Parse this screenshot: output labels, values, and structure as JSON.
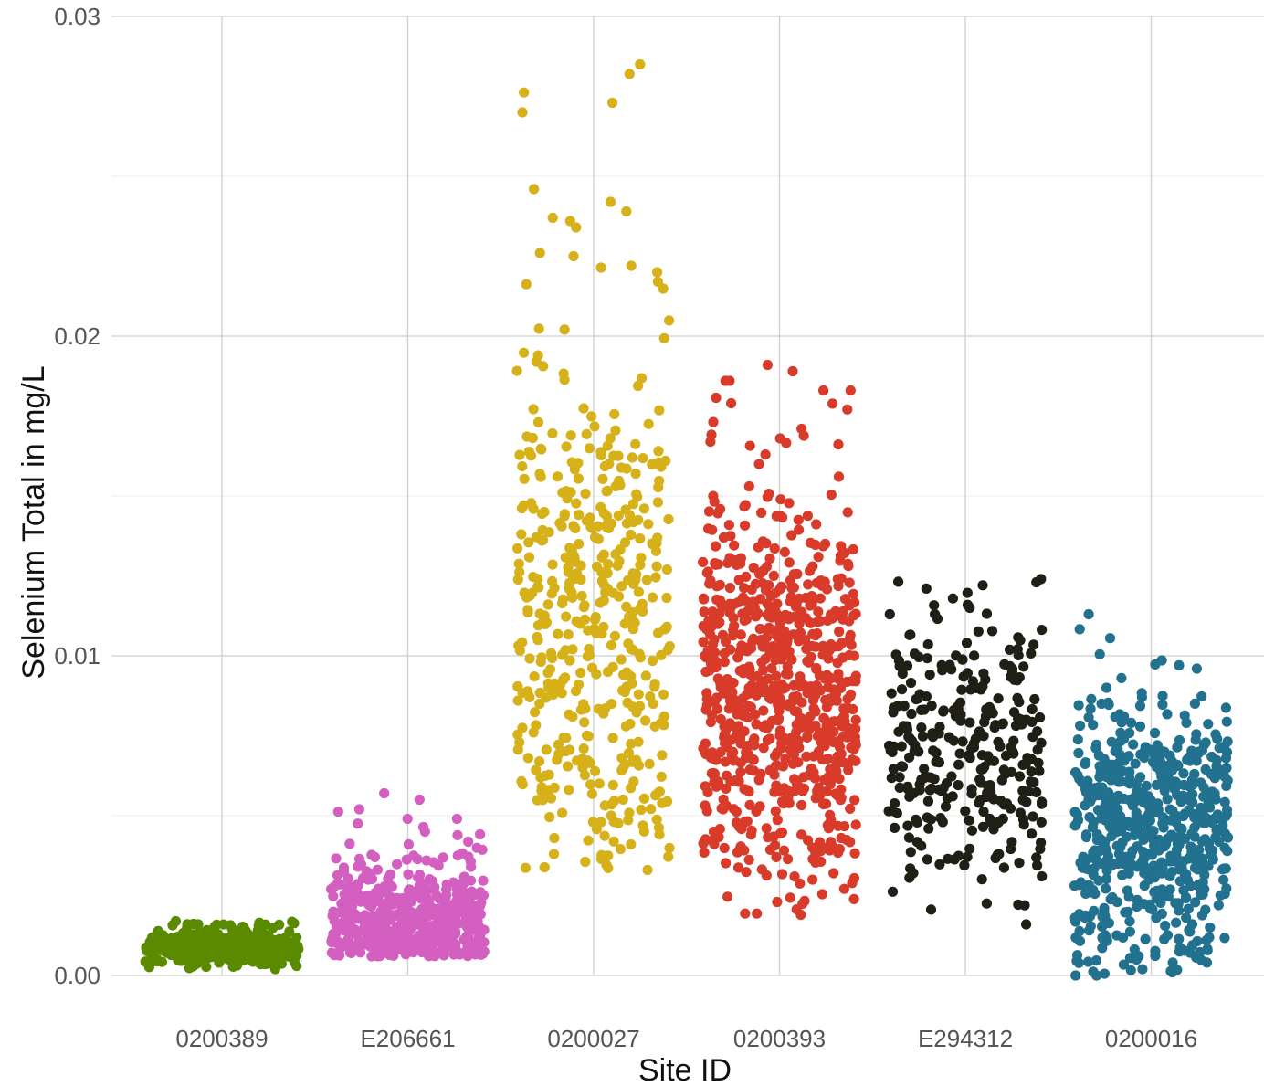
{
  "chart_data": {
    "type": "scatter",
    "title": "",
    "xlabel": "Site ID",
    "ylabel": "Selenium Total  in  mg/L",
    "ylim": [
      0,
      0.03
    ],
    "yticks": [
      {
        "value": 0,
        "label": "0.00"
      },
      {
        "value": 0.01,
        "label": "0.01"
      },
      {
        "value": 0.02,
        "label": "0.02"
      },
      {
        "value": 0.03,
        "label": "0.03"
      }
    ],
    "grid": true,
    "legend": "none",
    "categories": [
      "0200389",
      "E206661",
      "0200027",
      "0200393",
      "E294312",
      "0200016"
    ],
    "series": [
      {
        "category": "0200389",
        "color": "#5a8a00",
        "count": 400,
        "typical": 0.0009,
        "range": [
          0.0002,
          0.0017
        ],
        "extremes": [
          0.0002,
          0.0015,
          0.0016,
          0.0017,
          0.0016
        ]
      },
      {
        "category": "E206661",
        "color": "#d35fc0",
        "count": 500,
        "typical": 0.0017,
        "range": [
          0.0006,
          0.0057
        ],
        "extremes": [
          0.0052,
          0.0049,
          0.0055,
          0.0049,
          0.0057,
          0.0045,
          0.0041
        ]
      },
      {
        "category": "0200027",
        "color": "#d6b11a",
        "count": 450,
        "typical": 0.011,
        "range": [
          0.0033,
          0.0285
        ],
        "extremes": [
          0.0282,
          0.0285,
          0.0273,
          0.027,
          0.0246,
          0.0242,
          0.0239,
          0.0237,
          0.0236,
          0.0234,
          0.0226,
          0.0225,
          0.0222,
          0.022,
          0.0217,
          0.0033,
          0.0038,
          0.0043
        ]
      },
      {
        "category": "0200393",
        "color": "#d93b2b",
        "count": 750,
        "typical": 0.009,
        "range": [
          0.0019,
          0.0191
        ],
        "extremes": [
          0.0191,
          0.0189,
          0.0186,
          0.0186,
          0.0183,
          0.0183,
          0.0179,
          0.0171,
          0.0168,
          0.0019,
          0.0023
        ]
      },
      {
        "category": "E294312",
        "color": "#1f1f16",
        "count": 300,
        "typical": 0.007,
        "range": [
          0.0016,
          0.0124
        ],
        "extremes": [
          0.0124,
          0.0123,
          0.0115,
          0.0113,
          0.0113,
          0.0031,
          0.0016
        ]
      },
      {
        "category": "0200016",
        "color": "#21718f",
        "count": 600,
        "typical": 0.0045,
        "range": [
          0.0,
          0.0113
        ],
        "extremes": [
          0.0113,
          0.0096,
          0.009,
          0.0085,
          0.0,
          0.0001,
          0.0,
          0.0005
        ]
      }
    ]
  }
}
